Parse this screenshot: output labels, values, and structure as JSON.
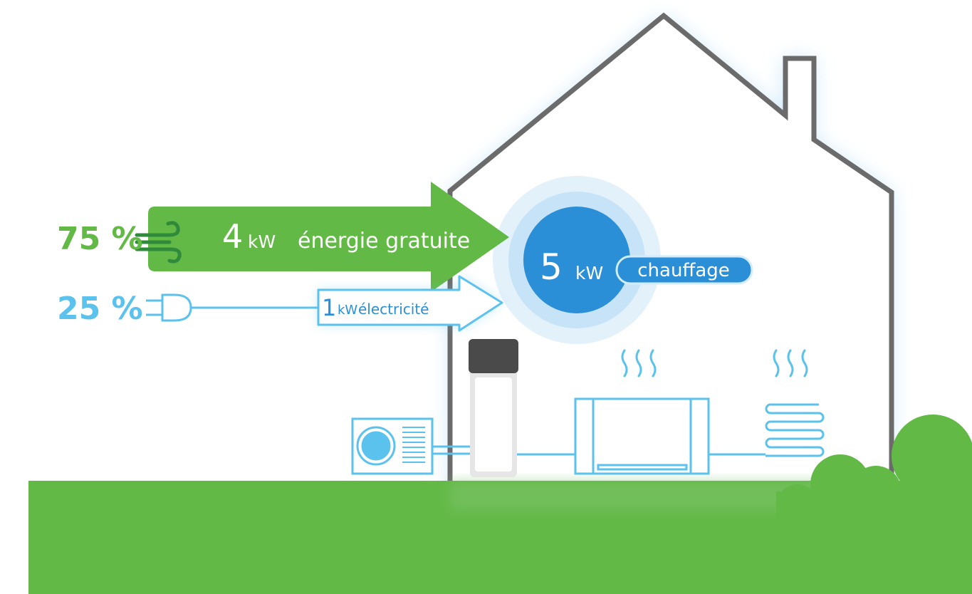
{
  "sources": [
    {
      "percent": "75 %"
    },
    {
      "percent": "25 %"
    }
  ],
  "free_energy": {
    "amount": "4",
    "unit": "kW",
    "label": "énergie gratuite"
  },
  "electricity": {
    "amount": "1",
    "unit": "kW",
    "label": "électricité"
  },
  "heating": {
    "amount": "5",
    "unit": "kW",
    "label": "chauffage"
  }
}
